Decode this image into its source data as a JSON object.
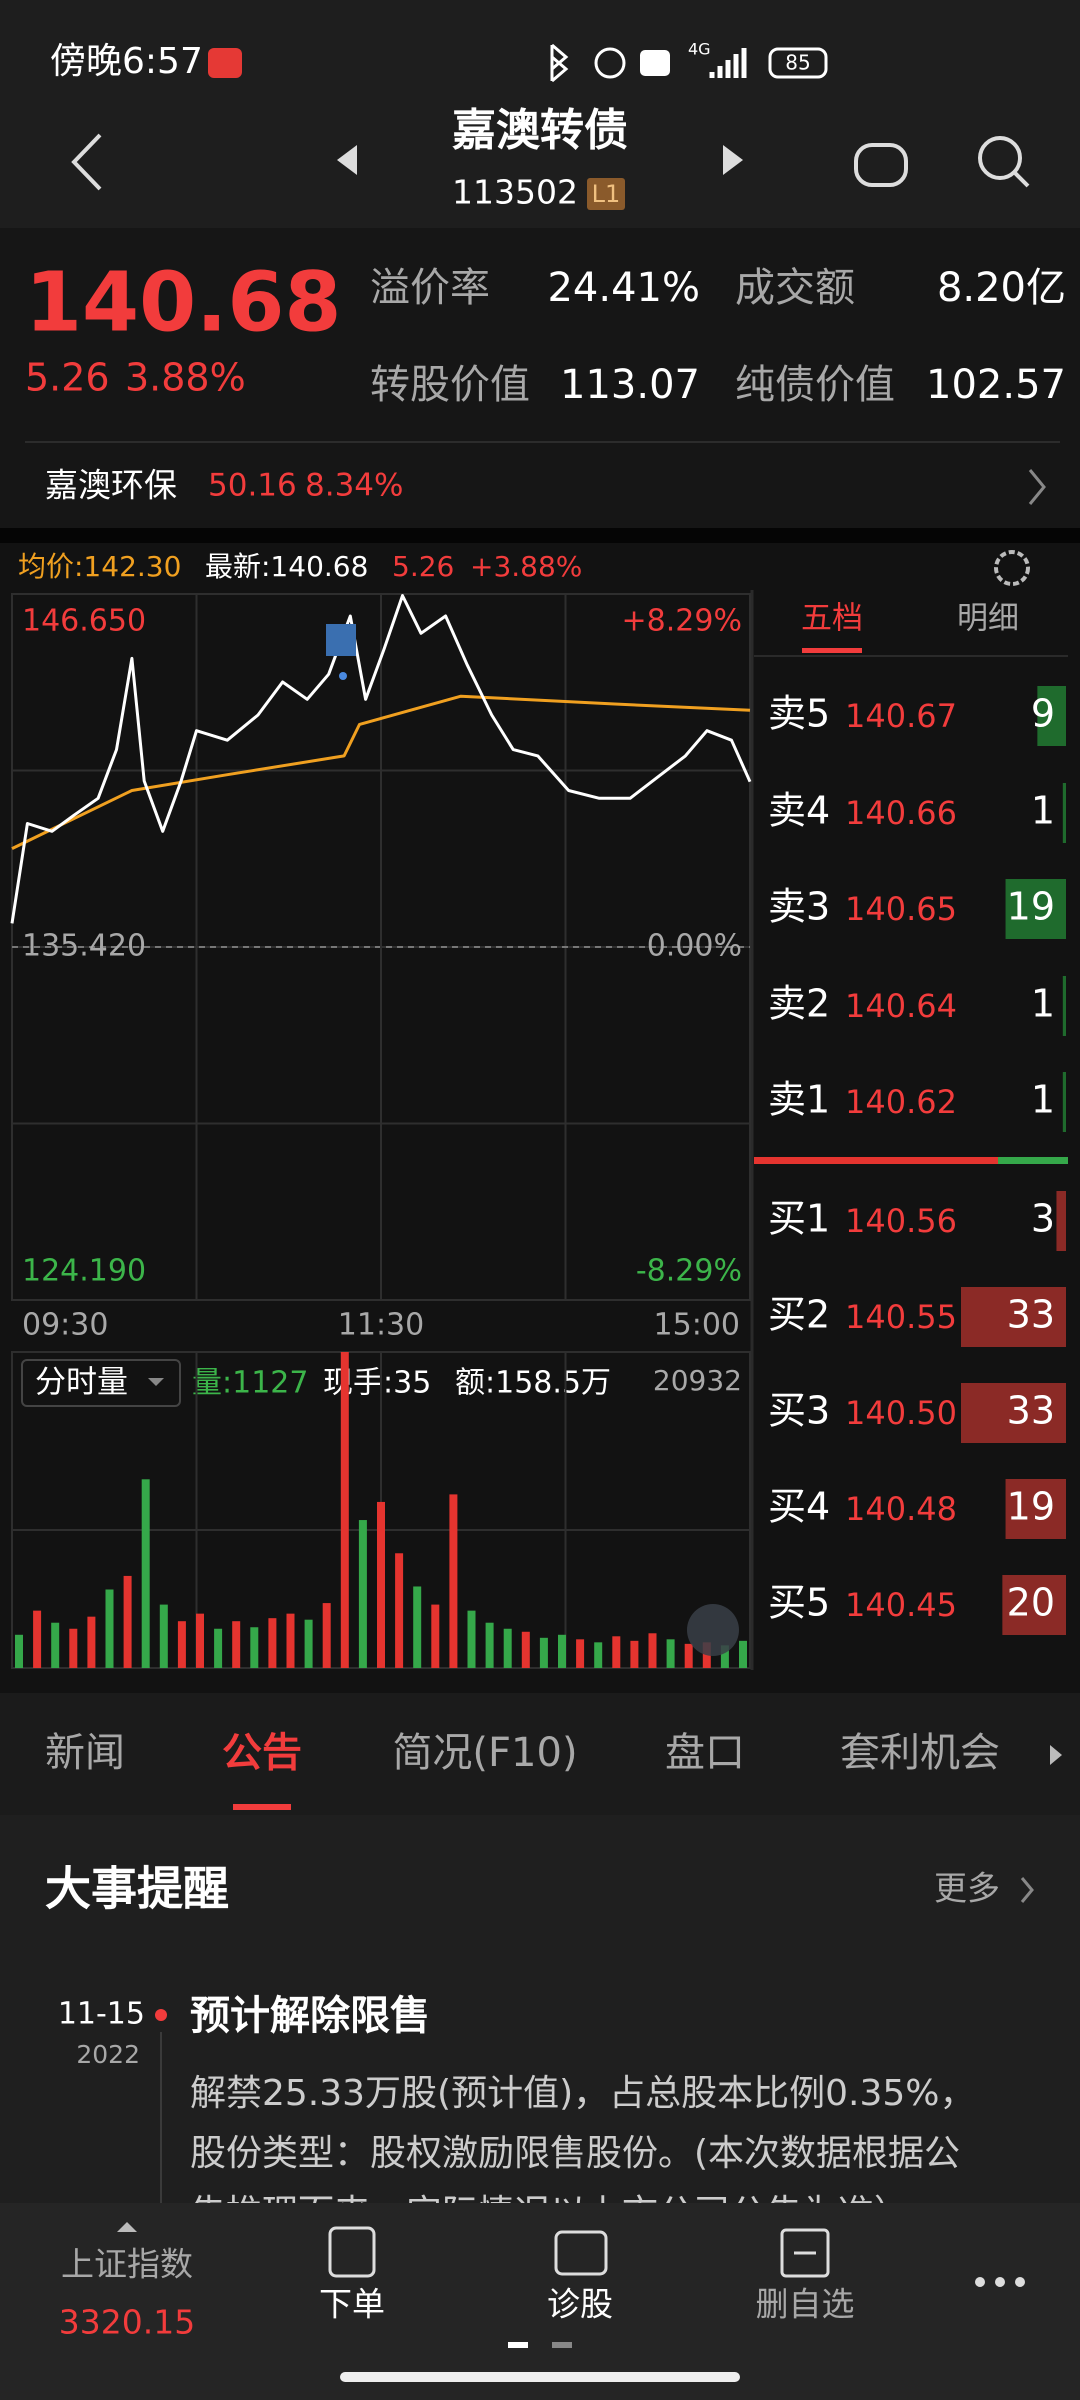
{
  "status_bar": {
    "time": "傍晚6:57",
    "network": "4G",
    "battery": "85"
  },
  "header": {
    "title": "嘉澳转债",
    "code": "113502",
    "level": "L1"
  },
  "quote": {
    "price": "140.68",
    "change": "5.26",
    "change_pct": "3.88%",
    "fields": [
      {
        "label": "溢价率",
        "value": "24.41%"
      },
      {
        "label": "成交额",
        "value": "8.20亿"
      },
      {
        "label": "转股价值",
        "value": "113.07"
      },
      {
        "label": "纯债价值",
        "value": "102.57"
      }
    ],
    "underlying": {
      "name": "嘉澳环保",
      "price": "50.16",
      "change_pct": "8.34%"
    }
  },
  "chart_data": [
    {
      "type": "line",
      "legend": [
        "均价:142.30",
        "最新:140.68",
        "5.26",
        "+3.88%"
      ],
      "xlim": [
        0,
        240
      ],
      "xticks": [
        {
          "value": 0,
          "label": "09:30"
        },
        {
          "value": 120,
          "label": "11:30"
        },
        {
          "value": 240,
          "label": "15:00"
        }
      ],
      "ylim": [
        124.19,
        146.65
      ],
      "yticks": [
        {
          "value": 124.19,
          "label": "124.190"
        },
        {
          "value": 135.42,
          "label": "135.420"
        },
        {
          "value": 146.65,
          "label": "146.650"
        }
      ],
      "y2lim": [
        -8.29,
        8.29
      ],
      "y2ticks": [
        {
          "value": -8.29,
          "label": "-8.29%"
        },
        {
          "value": 0,
          "label": "0.00%"
        },
        {
          "value": 8.29,
          "label": "+8.29%"
        }
      ],
      "grid": true,
      "series": [
        {
          "color": "#ffffff",
          "x": [
            0,
            5,
            13,
            20,
            28,
            34,
            39,
            43,
            49,
            55,
            60,
            70,
            80,
            88,
            96,
            103,
            110,
            115,
            121,
            127,
            133,
            141,
            148,
            156,
            163,
            171,
            181,
            191,
            201,
            211,
            219,
            226,
            234,
            240
          ],
          "values": [
            136.17,
            139.35,
            139.1,
            139.6,
            140.15,
            141.7,
            144.6,
            140.7,
            139.1,
            140.7,
            142.3,
            142.0,
            142.8,
            143.85,
            143.3,
            144.1,
            145.95,
            143.3,
            144.9,
            146.6,
            145.4,
            145.95,
            144.4,
            142.8,
            141.7,
            141.5,
            140.4,
            140.15,
            140.15,
            140.9,
            141.5,
            142.3,
            142.0,
            140.68
          ]
        },
        {
          "color": "#f0a020",
          "x": [
            0,
            39,
            70,
            108,
            113,
            146,
            196,
            240
          ],
          "values": [
            138.55,
            140.4,
            140.9,
            141.5,
            142.5,
            143.4,
            143.15,
            142.95
          ]
        }
      ]
    },
    {
      "type": "bar",
      "selector": "分时量",
      "labels": [
        "量:1127",
        "现手:35",
        "额:158.5万"
      ],
      "xlim": [
        0,
        240
      ],
      "ylim": [
        0,
        20932
      ],
      "yticks": [
        20932
      ],
      "x": [
        0,
        6,
        12,
        18,
        24,
        30,
        36,
        42,
        48,
        54,
        60,
        66,
        72,
        78,
        84,
        90,
        96,
        102,
        108,
        114,
        120,
        126,
        132,
        138,
        144,
        150,
        156,
        162,
        168,
        174,
        180,
        186,
        192,
        198,
        204,
        210,
        216,
        222,
        228,
        234,
        240
      ],
      "values": [
        2200,
        3800,
        3000,
        2600,
        3400,
        5200,
        6100,
        12500,
        4200,
        3100,
        3600,
        2600,
        3100,
        2700,
        3300,
        3600,
        3200,
        4300,
        20932,
        9800,
        11000,
        7600,
        5400,
        4200,
        11500,
        3800,
        3000,
        2600,
        2400,
        2000,
        2200,
        1900,
        1700,
        2100,
        1800,
        2300,
        1900,
        1600,
        1700,
        1500,
        1800
      ],
      "colors": [
        "#35a84a",
        "#e5342f",
        "#35a84a",
        "#e5342f",
        "#e5342f",
        "#35a84a",
        "#e5342f",
        "#35a84a",
        "#35a84a",
        "#e5342f",
        "#e5342f",
        "#35a84a",
        "#e5342f",
        "#35a84a",
        "#e5342f",
        "#e5342f",
        "#35a84a",
        "#e5342f",
        "#e5342f",
        "#35a84a",
        "#e5342f",
        "#e5342f",
        "#35a84a",
        "#e5342f",
        "#e5342f",
        "#35a84a",
        "#35a84a",
        "#35a84a",
        "#e5342f",
        "#35a84a",
        "#35a84a",
        "#e5342f",
        "#35a84a",
        "#e5342f",
        "#e5342f",
        "#e5342f",
        "#35a84a",
        "#e5342f",
        "#e5342f",
        "#35a84a",
        "#35a84a"
      ]
    }
  ],
  "order_book": {
    "tabs": [
      "五档",
      "明细"
    ],
    "asks": [
      {
        "label": "卖5",
        "price": "140.67",
        "volume": 9
      },
      {
        "label": "卖4",
        "price": "140.66",
        "volume": 1
      },
      {
        "label": "卖3",
        "price": "140.65",
        "volume": 19
      },
      {
        "label": "卖2",
        "price": "140.64",
        "volume": 1
      },
      {
        "label": "卖1",
        "price": "140.62",
        "volume": 1
      }
    ],
    "bids": [
      {
        "label": "买1",
        "price": "140.56",
        "volume": 3
      },
      {
        "label": "买2",
        "price": "140.55",
        "volume": 33
      },
      {
        "label": "买3",
        "price": "140.50",
        "volume": 33
      },
      {
        "label": "买4",
        "price": "140.48",
        "volume": 19
      },
      {
        "label": "买5",
        "price": "140.45",
        "volume": 20
      }
    ]
  },
  "tabs": [
    "新闻",
    "公告",
    "简况(F10)",
    "盘口",
    "套利机会"
  ],
  "events": {
    "title": "大事提醒",
    "more": "更多",
    "items": [
      {
        "date": "11-15",
        "year": "2022",
        "title": "预计解除限售",
        "lines": [
          "解禁25.33万股(预计值)，占总股本比例0.35%，",
          "股份类型：股权激励限售股份。(本次数据根据公",
          "告推理而来，实际情况以上市公司公告为准）"
        ]
      }
    ]
  },
  "bottom_nav": {
    "index_name": "上证指数",
    "index_value": "3320.15",
    "items": [
      "下单",
      "诊股",
      "删自选"
    ]
  }
}
